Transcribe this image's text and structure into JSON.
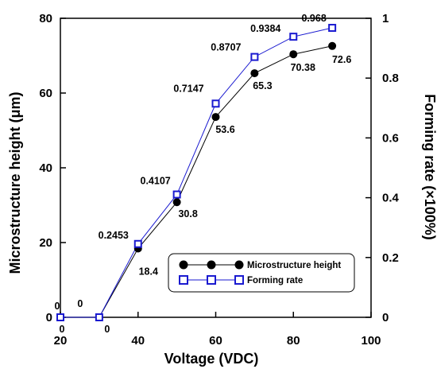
{
  "chart_data": {
    "type": "line",
    "xlabel": "Voltage (VDC)",
    "ylabel": "Microstructure height (μm)",
    "y2label": "Forming rate (×100%)",
    "xlim": [
      20,
      100
    ],
    "ylim": [
      0,
      80
    ],
    "y2lim": [
      0,
      1
    ],
    "x": [
      20,
      30,
      40,
      50,
      60,
      70,
      80,
      90
    ],
    "x_ticks": [
      20,
      40,
      60,
      80,
      100
    ],
    "x_tick_labels": [
      "20",
      "40",
      "60",
      "80",
      "100"
    ],
    "y_ticks": [
      0,
      20,
      40,
      60,
      80
    ],
    "y_tick_labels": [
      "0",
      "20",
      "40",
      "60",
      "80"
    ],
    "y2_ticks": [
      0,
      0.2,
      0.4,
      0.6,
      0.8,
      1
    ],
    "y2_tick_labels": [
      "0",
      "0.2",
      "0.4",
      "0.6",
      "0.8",
      "1"
    ],
    "series": [
      {
        "name": "Microstructure height",
        "axis": "left",
        "marker": "filled-circle",
        "color": "#000000",
        "values": [
          0,
          0,
          18.4,
          30.8,
          53.6,
          65.3,
          70.38,
          72.6
        ],
        "labels": [
          "0",
          "0",
          "18.4",
          "30.8",
          "53.6",
          "65.3",
          "70.38",
          "72.6"
        ]
      },
      {
        "name": "Forming rate",
        "axis": "right",
        "marker": "open-square",
        "color": "#1a1ad0",
        "values": [
          0,
          0,
          0.2453,
          0.4107,
          0.7147,
          0.8707,
          0.9384,
          0.968
        ],
        "labels": [
          "0",
          "0",
          "0.2453",
          "0.4107",
          "0.7147",
          "0.8707",
          "0.9384",
          "0.968"
        ]
      }
    ],
    "grid": false,
    "legend_position": "bottom-right"
  }
}
